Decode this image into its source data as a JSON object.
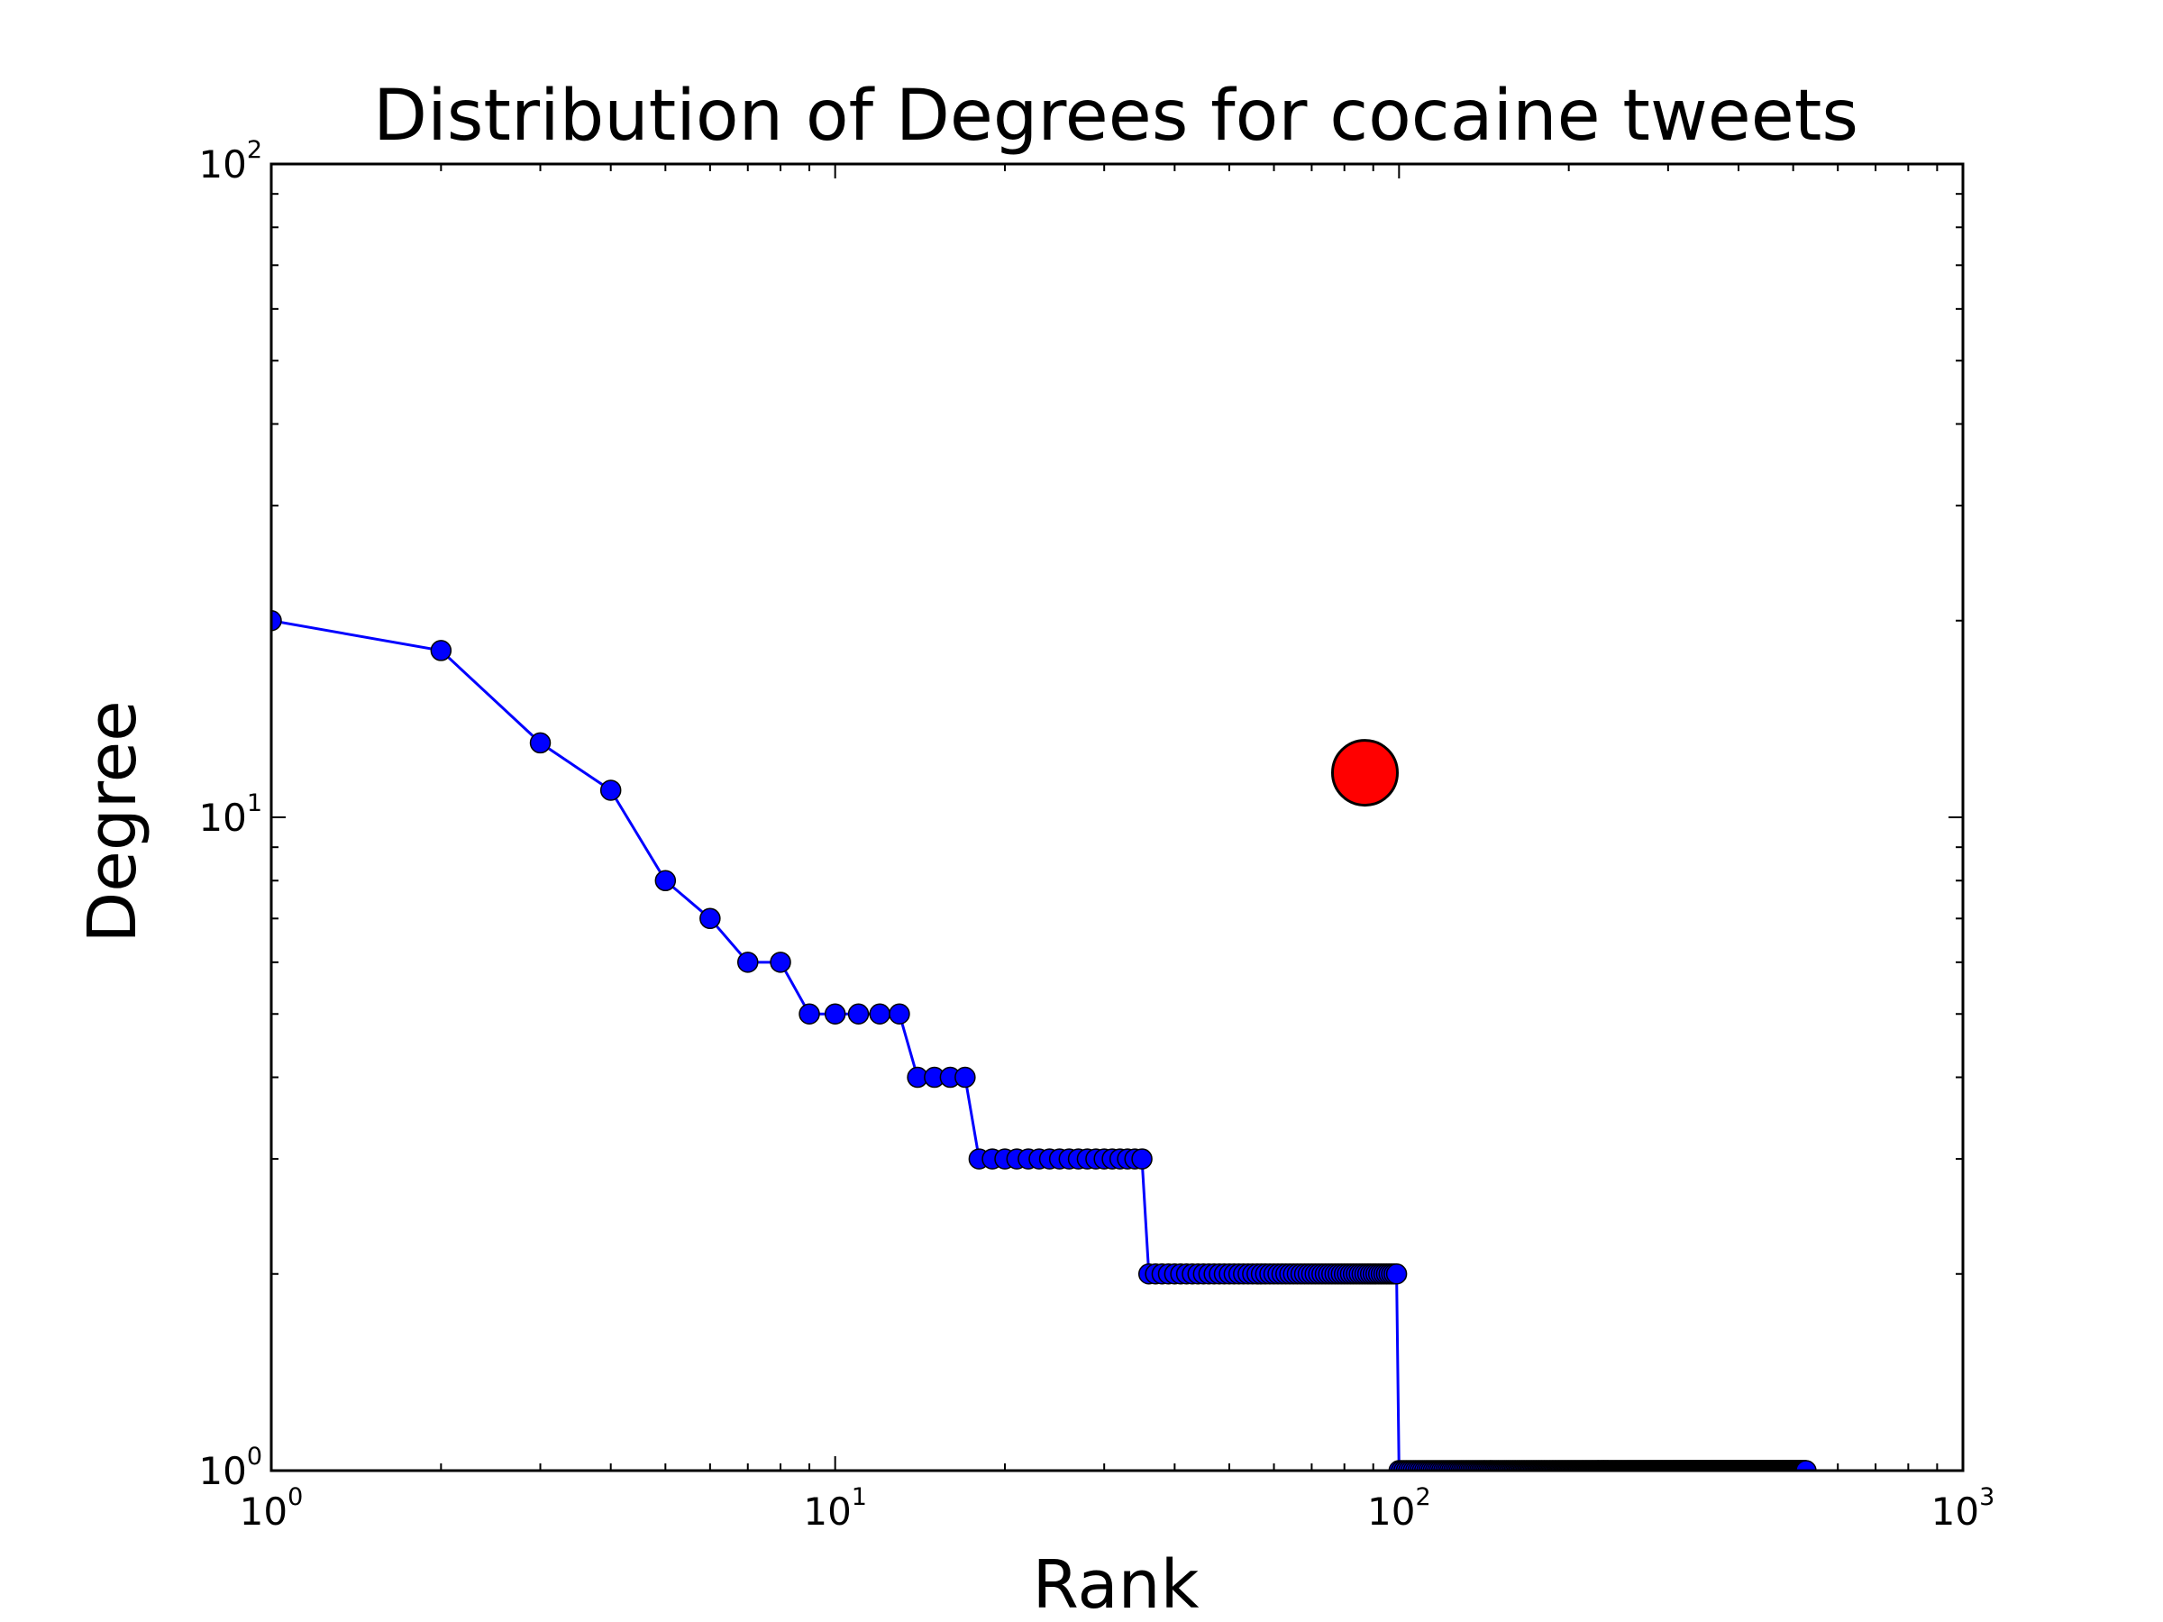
{
  "chart_data": {
    "type": "line",
    "title": "Distribution of Degrees for cocaine tweets",
    "xlabel": "Rank",
    "ylabel": "Degree",
    "xscale": "log",
    "yscale": "log",
    "xlim": [
      1,
      1000
    ],
    "ylim": [
      1,
      100
    ],
    "grid": false,
    "xticks": [
      {
        "value": 1,
        "base": "10",
        "exp": "0"
      },
      {
        "value": 10,
        "base": "10",
        "exp": "1"
      },
      {
        "value": 100,
        "base": "10",
        "exp": "2"
      },
      {
        "value": 1000,
        "base": "10",
        "exp": "3"
      }
    ],
    "yticks": [
      {
        "value": 1,
        "base": "10",
        "exp": "0"
      },
      {
        "value": 10,
        "base": "10",
        "exp": "1"
      },
      {
        "value": 100,
        "base": "10",
        "exp": "2"
      }
    ],
    "series": [
      {
        "type": "line-markers",
        "color": "#0000ff",
        "runs": [
          {
            "from": 1,
            "to": 1,
            "y": 20
          },
          {
            "from": 2,
            "to": 2,
            "y": 18
          },
          {
            "from": 3,
            "to": 3,
            "y": 13
          },
          {
            "from": 4,
            "to": 4,
            "y": 11
          },
          {
            "from": 5,
            "to": 5,
            "y": 8
          },
          {
            "from": 6,
            "to": 6,
            "y": 7
          },
          {
            "from": 7,
            "to": 8,
            "y": 6
          },
          {
            "from": 9,
            "to": 13,
            "y": 5
          },
          {
            "from": 14,
            "to": 17,
            "y": 4
          },
          {
            "from": 18,
            "to": 35,
            "y": 3
          },
          {
            "from": 36,
            "to": 99,
            "y": 2
          },
          {
            "from": 100,
            "to": 527,
            "y": 1
          }
        ]
      },
      {
        "type": "scatter",
        "color": "#ff0000",
        "points": [
          {
            "x": 87,
            "y": 11.7
          }
        ]
      }
    ]
  }
}
